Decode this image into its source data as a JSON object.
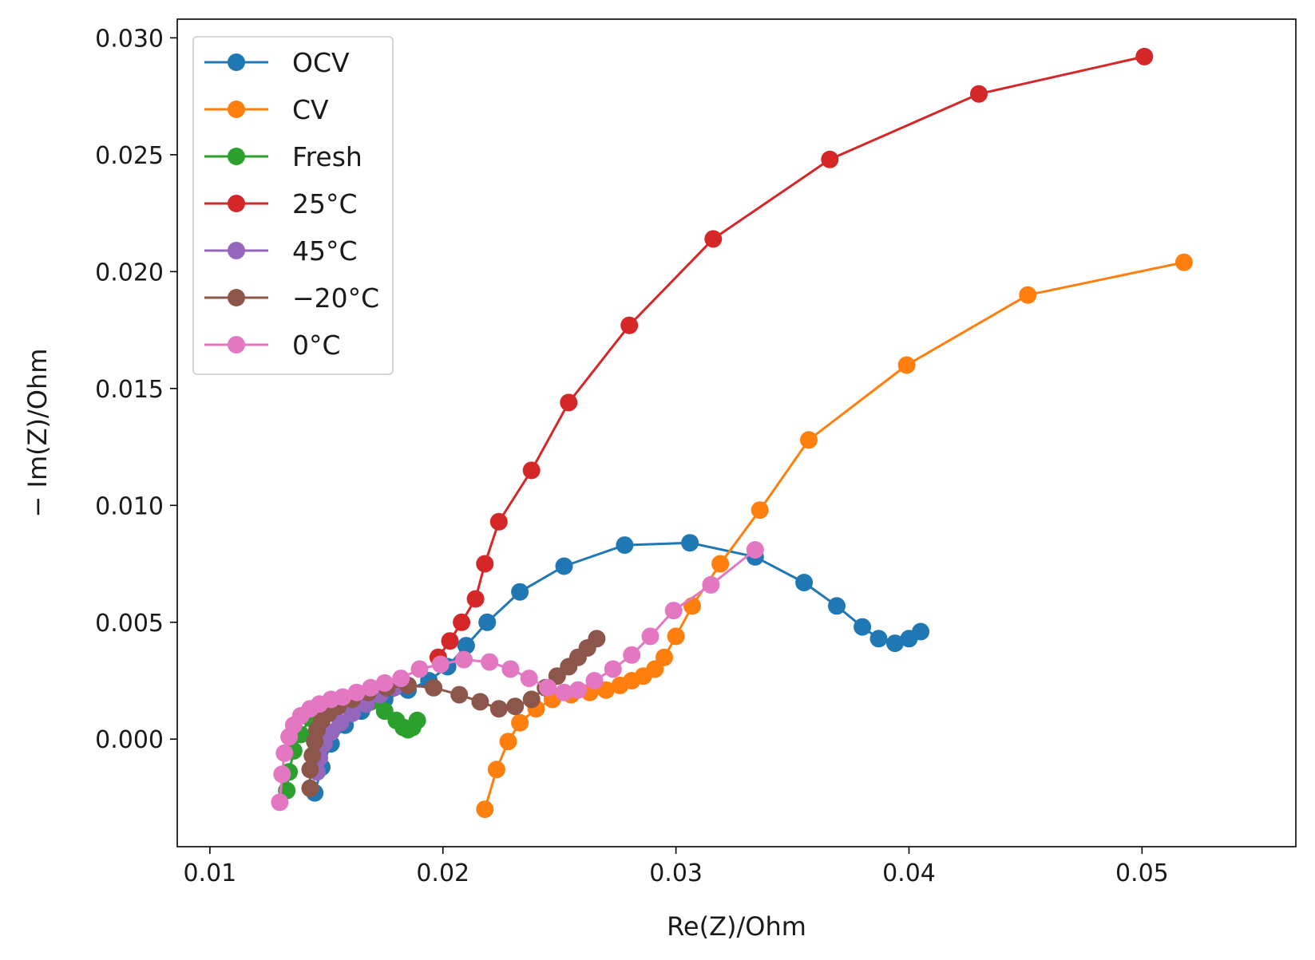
{
  "chart_data": {
    "type": "line",
    "title": "",
    "xlabel": "Re(Z)/Ohm",
    "ylabel": "− Im(Z)/Ohm",
    "xlim": [
      0.0086,
      0.0566
    ],
    "ylim": [
      -0.0046,
      0.0308
    ],
    "xticks": [
      0.01,
      0.02,
      0.03,
      0.04,
      0.05
    ],
    "xtick_labels": [
      "0.01",
      "0.02",
      "0.03",
      "0.04",
      "0.05"
    ],
    "yticks": [
      0.0,
      0.005,
      0.01,
      0.015,
      0.02,
      0.025,
      0.03
    ],
    "ytick_labels": [
      "0.000",
      "0.005",
      "0.010",
      "0.015",
      "0.020",
      "0.025",
      "0.030"
    ],
    "grid": false,
    "legend_position": "top-left",
    "series": [
      {
        "name": "OCV",
        "color": "#1f77b4",
        "x": [
          0.0145,
          0.0148,
          0.0152,
          0.0158,
          0.0165,
          0.0175,
          0.0185,
          0.0194,
          0.0202,
          0.021,
          0.0219,
          0.0233,
          0.0252,
          0.0278,
          0.0306,
          0.0334,
          0.0355,
          0.0369,
          0.038,
          0.0387,
          0.0394,
          0.04,
          0.0405
        ],
        "y": [
          -0.0023,
          -0.0012,
          -0.0002,
          0.0006,
          0.0012,
          0.0017,
          0.0021,
          0.0025,
          0.0031,
          0.004,
          0.005,
          0.0063,
          0.0074,
          0.0083,
          0.0084,
          0.0078,
          0.0067,
          0.0057,
          0.0048,
          0.0043,
          0.0041,
          0.0043,
          0.0046
        ]
      },
      {
        "name": "CV",
        "color": "#ff7f0e",
        "x": [
          0.0218,
          0.0223,
          0.0228,
          0.0233,
          0.024,
          0.0247,
          0.0255,
          0.0263,
          0.027,
          0.0276,
          0.0281,
          0.0286,
          0.0291,
          0.0295,
          0.03,
          0.0307,
          0.0319,
          0.0336,
          0.0357,
          0.0399,
          0.0451,
          0.0518
        ],
        "y": [
          -0.003,
          -0.0013,
          -0.0001,
          0.0007,
          0.0013,
          0.0017,
          0.0019,
          0.002,
          0.0021,
          0.0023,
          0.0025,
          0.0027,
          0.003,
          0.0035,
          0.0044,
          0.0057,
          0.0075,
          0.0098,
          0.0128,
          0.016,
          0.019,
          0.0204
        ]
      },
      {
        "name": "Fresh",
        "color": "#2ca02c",
        "x": [
          0.0133,
          0.0134,
          0.0136,
          0.0139,
          0.0143,
          0.0148,
          0.0155,
          0.0162,
          0.0169,
          0.0175,
          0.018,
          0.0183,
          0.0185,
          0.0187,
          0.0189
        ],
        "y": [
          -0.0022,
          -0.0014,
          -0.0005,
          0.0002,
          0.0009,
          0.0013,
          0.0016,
          0.0018,
          0.0016,
          0.0012,
          0.0008,
          0.0005,
          0.0004,
          0.0005,
          0.0008
        ]
      },
      {
        "name": "25°C",
        "color": "#d62728",
        "x": [
          0.0198,
          0.0203,
          0.0208,
          0.0214,
          0.0218,
          0.0224,
          0.0238,
          0.0254,
          0.028,
          0.0316,
          0.0366,
          0.043,
          0.0501
        ],
        "y": [
          0.0035,
          0.0042,
          0.005,
          0.006,
          0.0075,
          0.0093,
          0.0115,
          0.0144,
          0.0177,
          0.0214,
          0.0248,
          0.0276,
          0.0292
        ]
      },
      {
        "name": "45°C",
        "color": "#9467bd",
        "x": [
          0.0146,
          0.0147,
          0.0149,
          0.0152,
          0.0156,
          0.0161,
          0.0167,
          0.0173,
          0.0179
        ],
        "y": [
          -0.0014,
          -0.0008,
          -0.0002,
          0.0003,
          0.0007,
          0.0011,
          0.0015,
          0.0019,
          0.0022
        ]
      },
      {
        "name": "−20°C",
        "color": "#8c564b",
        "x": [
          0.0143,
          0.0143,
          0.0144,
          0.0145,
          0.0146,
          0.0148,
          0.0151,
          0.0155,
          0.0161,
          0.0168,
          0.0176,
          0.0185,
          0.0196,
          0.0207,
          0.0216,
          0.0224,
          0.0231,
          0.0238,
          0.0244,
          0.0249,
          0.0254,
          0.0258,
          0.0262,
          0.0266
        ],
        "y": [
          -0.0021,
          -0.0013,
          -0.0007,
          -0.0001,
          0.0004,
          0.0008,
          0.0011,
          0.0014,
          0.0017,
          0.002,
          0.0022,
          0.0023,
          0.0022,
          0.0019,
          0.0016,
          0.0013,
          0.0014,
          0.0017,
          0.0022,
          0.0027,
          0.0031,
          0.0035,
          0.0039,
          0.0043
        ]
      },
      {
        "name": "0°C",
        "color": "#e377c2",
        "x": [
          0.013,
          0.0131,
          0.0132,
          0.0134,
          0.0136,
          0.0139,
          0.0143,
          0.0147,
          0.0152,
          0.0157,
          0.0163,
          0.0169,
          0.0175,
          0.0182,
          0.019,
          0.0199,
          0.0209,
          0.022,
          0.0229,
          0.0237,
          0.0245,
          0.0252,
          0.0258,
          0.0265,
          0.0273,
          0.0281,
          0.0289,
          0.0299,
          0.0315,
          0.0334
        ],
        "y": [
          -0.0027,
          -0.0015,
          -0.0006,
          0.0001,
          0.0006,
          0.001,
          0.0013,
          0.0015,
          0.0017,
          0.0018,
          0.002,
          0.0022,
          0.0024,
          0.0026,
          0.003,
          0.0032,
          0.0034,
          0.0033,
          0.003,
          0.0026,
          0.0022,
          0.002,
          0.0021,
          0.0025,
          0.003,
          0.0036,
          0.0044,
          0.0055,
          0.0066,
          0.0081
        ]
      }
    ]
  }
}
